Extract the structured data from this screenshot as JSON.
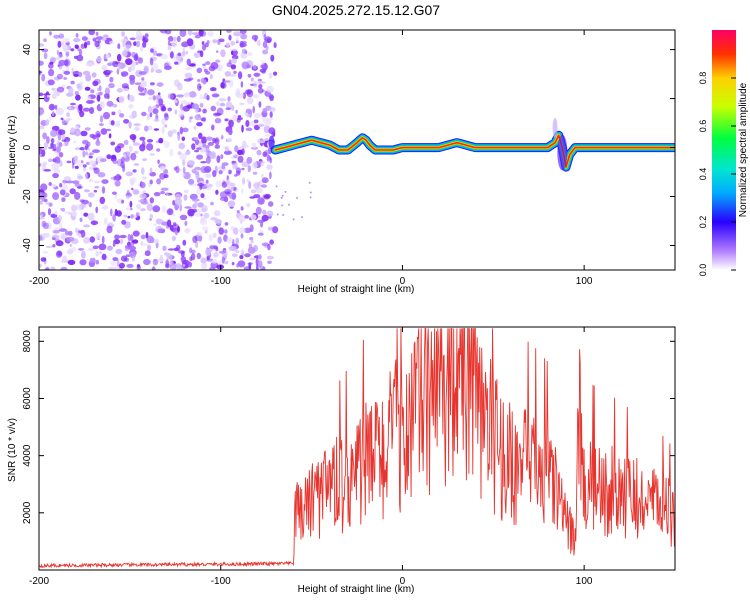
{
  "figure": {
    "title": "GN04.2025.272.15.12.G07"
  },
  "chart_data": [
    {
      "type": "heatmap",
      "xlabel": "Height of straight line (km)",
      "ylabel": "Frequency (Hz)",
      "xlim": [
        -200,
        150
      ],
      "ylim": [
        -50,
        48
      ],
      "xticks": [
        -200,
        -100,
        0,
        100
      ],
      "yticks": [
        -40,
        -20,
        0,
        20,
        40
      ],
      "colorbar": {
        "label": "Normalized spectral amplitude",
        "range": [
          0,
          1
        ],
        "ticks": [
          0.0,
          0.2,
          0.4,
          0.6,
          0.8
        ]
      },
      "noise_region_x": [
        -200,
        -70
      ],
      "signal_track": {
        "x": [
          -70,
          -65,
          -60,
          -55,
          -50,
          -45,
          -40,
          -35,
          -30,
          -25,
          -22,
          -20,
          -18,
          -15,
          -10,
          -5,
          0,
          10,
          20,
          25,
          30,
          35,
          40,
          50,
          60,
          70,
          80,
          84,
          86,
          88,
          90,
          92,
          95,
          100,
          120,
          150
        ],
        "y": [
          -1,
          0,
          1,
          2,
          3,
          2,
          1,
          -1,
          -1,
          2,
          4,
          3,
          1,
          -1,
          -1,
          -1,
          0,
          0,
          0,
          1,
          2,
          1,
          0,
          0,
          0,
          0,
          0,
          2,
          5,
          0,
          -8,
          -3,
          0,
          0,
          0,
          0
        ]
      }
    },
    {
      "type": "line",
      "xlabel": "Height of straight line (km)",
      "ylabel": "SNR (10 * v/v)",
      "xlim": [
        -200,
        150
      ],
      "ylim": [
        0,
        8500
      ],
      "xticks": [
        -200,
        -100,
        0,
        100
      ],
      "yticks": [
        2000,
        4000,
        6000,
        8000
      ],
      "series": [
        {
          "name": "SNR",
          "color": "#e8342e",
          "envelope": {
            "x": [
              -200,
              -150,
              -100,
              -70,
              -60,
              -59,
              -50,
              -40,
              -30,
              -20,
              -10,
              0,
              10,
              20,
              30,
              40,
              50,
              60,
              70,
              80,
              85,
              90,
              95,
              97,
              100,
              110,
              120,
              130,
              140,
              150
            ],
            "y": [
              150,
              180,
              200,
              220,
              230,
              1800,
              2200,
              2600,
              3000,
              3500,
              3900,
              4700,
              5500,
              6000,
              6300,
              5600,
              4300,
              3400,
              3400,
              3100,
              2600,
              1500,
              1100,
              5000,
              2800,
              2700,
              2500,
              2300,
              2100,
              1800
            ]
          }
        }
      ]
    }
  ]
}
